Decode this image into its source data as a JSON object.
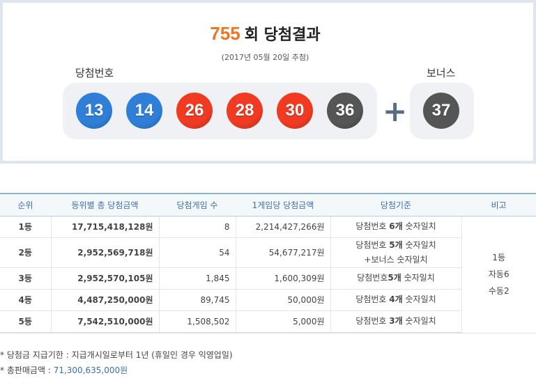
{
  "header": {
    "round": "755",
    "title_suffix": "회 당첨결과",
    "date": "(2017년 05월 20일 추첨)",
    "winning_label": "당첨번호",
    "bonus_label": "보너스"
  },
  "balls": [
    {
      "n": "13",
      "color": "#2f7fd8"
    },
    {
      "n": "14",
      "color": "#2f7fd8"
    },
    {
      "n": "26",
      "color": "#f03a22"
    },
    {
      "n": "28",
      "color": "#f03a22"
    },
    {
      "n": "30",
      "color": "#f03a22"
    },
    {
      "n": "36",
      "color": "#555555"
    }
  ],
  "bonus": {
    "n": "37",
    "color": "#555555"
  },
  "table": {
    "headers": [
      "순위",
      "등위별 총 당첨금액",
      "당첨게임 수",
      "1게임당 당첨금액",
      "당첨기준",
      "비고"
    ],
    "rows": [
      {
        "rank": "1등",
        "total": "17,715,418,128원",
        "count": "8",
        "per": "2,214,427,266원",
        "criteria": [
          "당첨번호 ",
          "6개",
          " 숫자일치"
        ]
      },
      {
        "rank": "2등",
        "total": "2,952,569,718원",
        "count": "54",
        "per": "54,677,217원",
        "criteria": [
          "당첨번호 ",
          "5개",
          " 숫자일치"
        ],
        "criteria2": "+보너스 숫자일치"
      },
      {
        "rank": "3등",
        "total": "2,952,570,105원",
        "count": "1,845",
        "per": "1,600,309원",
        "criteria": [
          "당첨번호",
          "5개",
          " 숫자일치"
        ]
      },
      {
        "rank": "4등",
        "total": "4,487,250,000원",
        "count": "89,745",
        "per": "50,000원",
        "criteria": [
          "당첨번호 ",
          "4개",
          " 숫자일치"
        ]
      },
      {
        "rank": "5등",
        "total": "7,542,510,000원",
        "count": "1,508,502",
        "per": "5,000원",
        "criteria": [
          "당첨번호 ",
          "3개",
          " 숫자일치"
        ]
      }
    ],
    "remark": [
      "1등",
      "자동6",
      "수동2"
    ]
  },
  "notes": {
    "deadline": "* 당첨금 지급기한 : 지급개시일로부터 1년 (휴일인 경우 익영업일)",
    "sales_label": "* 총판매금액 : ",
    "sales_value": "71,300,635,000원"
  }
}
